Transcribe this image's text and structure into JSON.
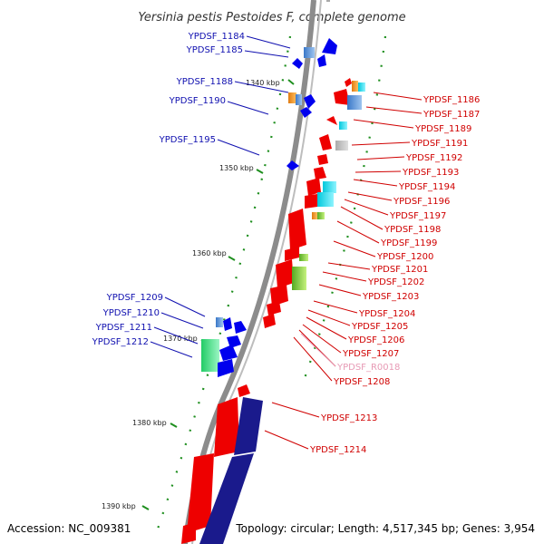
{
  "title": "Yersinia pestis Pestoides F, complete genome",
  "footer": {
    "accession": "Accession: NC_009381",
    "summary": "Topology: circular; Length: 4,517,345 bp; Genes: 3,954"
  },
  "ticks": [
    "1340 kbp",
    "1350 kbp",
    "1360 kbp",
    "1370 kbp",
    "1380 kbp",
    "1390 kbp"
  ],
  "genes_left": [
    "YPDSF_1184",
    "YPDSF_1185",
    "YPDSF_1188",
    "YPDSF_1190",
    "YPDSF_1195",
    "YPDSF_1209",
    "YPDSF_1210",
    "YPDSF_1211",
    "YPDSF_1212"
  ],
  "genes_right": [
    "YPDSF_1186",
    "YPDSF_1187",
    "YPDSF_1189",
    "YPDSF_1191",
    "YPDSF_1192",
    "YPDSF_1193",
    "YPDSF_1194",
    "YPDSF_1196",
    "YPDSF_1197",
    "YPDSF_1198",
    "YPDSF_1199",
    "YPDSF_1200",
    "YPDSF_1201",
    "YPDSF_1202",
    "YPDSF_1203",
    "YPDSF_1204",
    "YPDSF_1205",
    "YPDSF_1206",
    "YPDSF_1207",
    "YPDSF_R0018",
    "YPDSF_1208",
    "YPDSF_1213",
    "YPDSF_1214"
  ],
  "colors": {
    "forward_gene": "#0000ee",
    "reverse_gene": "#ee0000",
    "cds_blue": "#1a1a8c",
    "rna_pink": "#e79ab5",
    "backbone": "#8c8c8c"
  }
}
